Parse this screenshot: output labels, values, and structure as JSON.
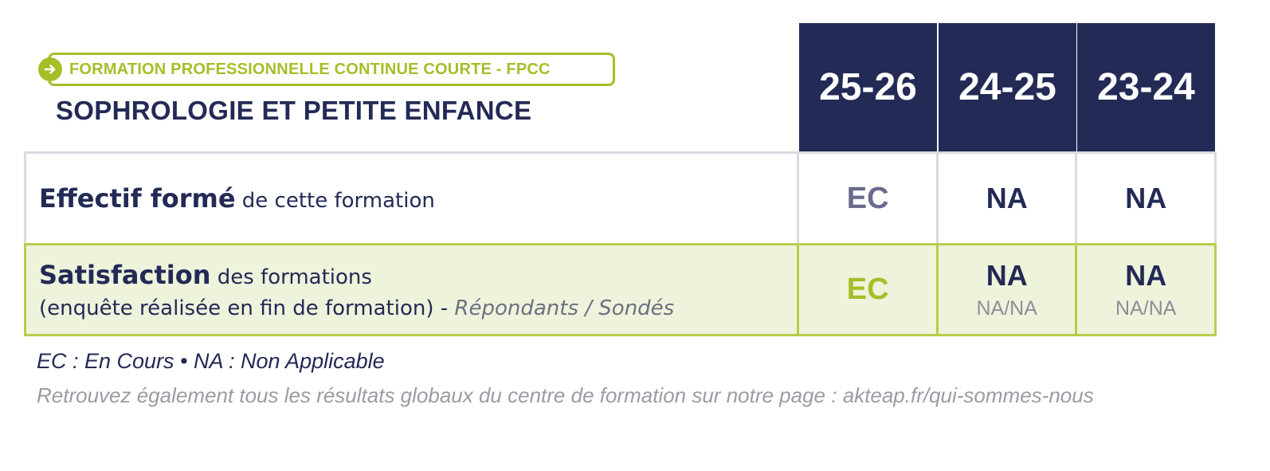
{
  "header": {
    "tag_label": "FORMATION PROFESSIONNELLE CONTINUE COURTE - FPCC",
    "title": "SOPHROLOGIE ET PETITE ENFANCE"
  },
  "years": [
    "25-26",
    "24-25",
    "23-24"
  ],
  "rows": [
    {
      "label_bold": "Effectif formé",
      "label_rest": " de cette formation",
      "values": [
        "EC",
        "NA",
        "NA"
      ]
    },
    {
      "label_bold": "Satisfaction",
      "label_rest": " des formations",
      "sub_text": "(enquête réalisée en fin de formation) - ",
      "sub_italic": "Répondants / Sondés",
      "values": [
        "EC",
        "NA",
        "NA"
      ],
      "sub_values": [
        "NA/NA",
        "NA/NA"
      ]
    }
  ],
  "legend": "EC : En Cours  •  NA : Non Applicable",
  "footer": "Retrouvez également tous les résultats globaux du centre de formation sur notre page : akteap.fr/qui-sommes-nous",
  "colors": {
    "navy": "#232a55",
    "green": "#a4bf28",
    "green_bg": "#eef3dc"
  }
}
